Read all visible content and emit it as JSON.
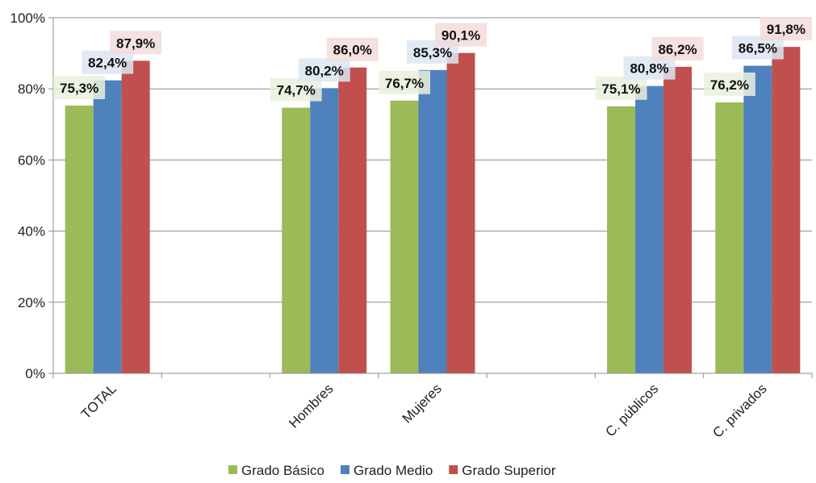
{
  "chart_data": {
    "type": "bar",
    "title": "",
    "xlabel": "",
    "ylabel": "",
    "ylim": [
      0,
      100
    ],
    "yticks": [
      0,
      20,
      40,
      60,
      80,
      100
    ],
    "ytick_labels": [
      "0%",
      "20%",
      "40%",
      "60%",
      "80%",
      "100%"
    ],
    "grid": true,
    "legend_position": "bottom",
    "slots": [
      "TOTAL",
      "",
      "Hombres",
      "Mujeres",
      "",
      "C. públicos",
      "C. privados"
    ],
    "categories": [
      "TOTAL",
      "Hombres",
      "Mujeres",
      "C. públicos",
      "C. privados"
    ],
    "series": [
      {
        "name": "Grado Básico",
        "color": "#9BBB59",
        "label_bg": "#EAF1DD",
        "values": [
          75.3,
          74.7,
          76.7,
          75.1,
          76.2
        ],
        "labels": [
          "75,3%",
          "74,7%",
          "76,7%",
          "75,1%",
          "76,2%"
        ]
      },
      {
        "name": "Grado Medio",
        "color": "#4F81BD",
        "label_bg": "#DCE6F2",
        "values": [
          82.4,
          80.2,
          85.3,
          80.8,
          86.5
        ],
        "labels": [
          "82,4%",
          "80,2%",
          "85,3%",
          "80,8%",
          "86,5%"
        ]
      },
      {
        "name": "Grado Superior",
        "color": "#C0504D",
        "label_bg": "#F2DCDB",
        "values": [
          87.9,
          86.0,
          90.1,
          86.2,
          91.8
        ],
        "labels": [
          "87,9%",
          "86,0%",
          "90,1%",
          "86,2%",
          "91,8%"
        ]
      }
    ]
  }
}
